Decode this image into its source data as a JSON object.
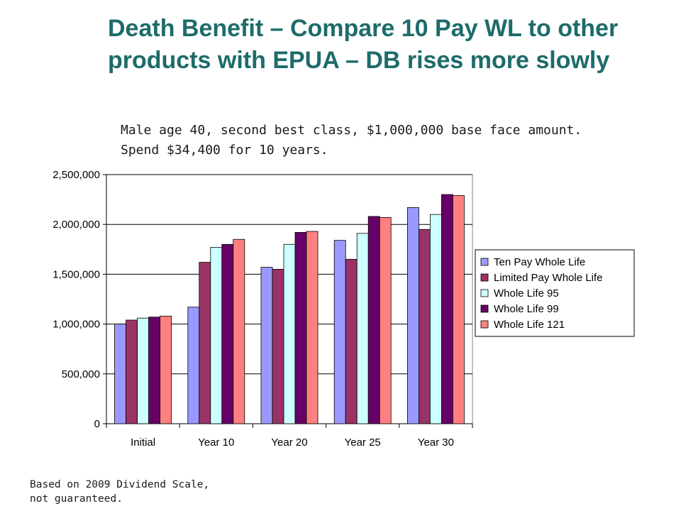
{
  "slide": {
    "title": "Death Benefit – Compare 10 Pay WL to other products with EPUA – DB rises more slowly",
    "subtitle": "Male age 40, second best class, $1,000,000 base face amount.  Spend $34,400 for 10 years.",
    "footnote": "Based on 2009 Dividend Scale, not guaranteed."
  },
  "chart_data": {
    "type": "bar",
    "title": "",
    "xlabel": "",
    "ylabel": "",
    "categories": [
      "Initial",
      "Year 10",
      "Year 20",
      "Year 25",
      "Year 30"
    ],
    "ylim": [
      0,
      2500000
    ],
    "yticks": [
      0,
      500000,
      1000000,
      1500000,
      2000000,
      2500000
    ],
    "ytick_labels": [
      "0",
      "500,000",
      "1,000,000",
      "1,500,000",
      "2,000,000",
      "2,500,000"
    ],
    "grid": true,
    "legend_position": "right",
    "series": [
      {
        "name": "Ten Pay Whole Life",
        "color": "#9999ff",
        "values": [
          1000000,
          1170000,
          1570000,
          1840000,
          2170000
        ]
      },
      {
        "name": "Limited Pay Whole Life",
        "color": "#993366",
        "values": [
          1040000,
          1620000,
          1550000,
          1650000,
          1950000
        ]
      },
      {
        "name": "Whole Life 95",
        "color": "#ccffff",
        "values": [
          1060000,
          1770000,
          1800000,
          1910000,
          2100000
        ]
      },
      {
        "name": "Whole Life 99",
        "color": "#660066",
        "values": [
          1070000,
          1800000,
          1920000,
          2080000,
          2300000
        ]
      },
      {
        "name": "Whole Life 121",
        "color": "#ff8080",
        "values": [
          1080000,
          1850000,
          1930000,
          2070000,
          2290000
        ]
      }
    ]
  }
}
